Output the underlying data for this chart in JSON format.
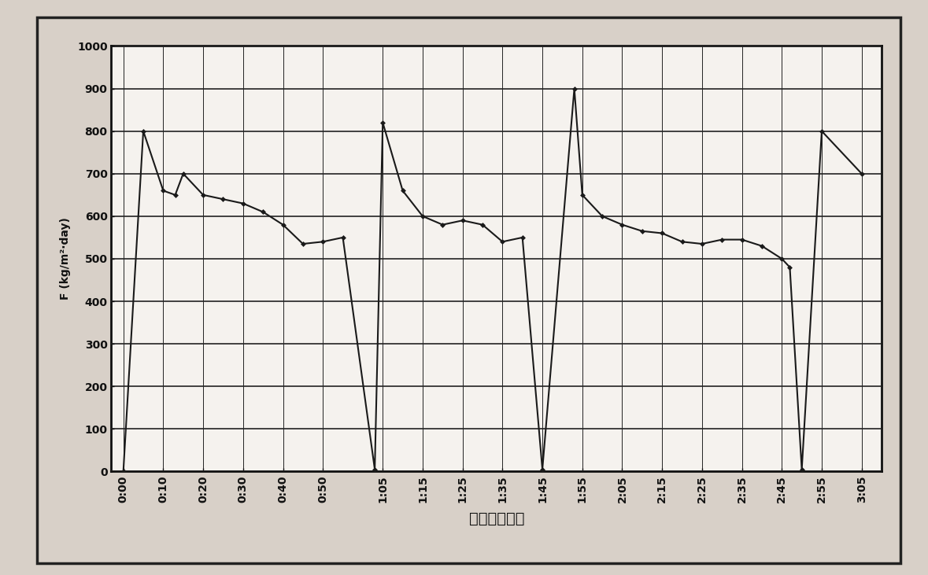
{
  "x_labels": [
    "0:00",
    "0:10",
    "0:20",
    "0:30",
    "0:40",
    "0:50",
    "1:05",
    "1:15",
    "1:25",
    "1:35",
    "1:45",
    "1:55",
    "2:05",
    "2:15",
    "2:25",
    "2:35",
    "2:45",
    "2:55",
    "3:05"
  ],
  "x_tick_mins": [
    0,
    10,
    20,
    30,
    40,
    50,
    65,
    75,
    85,
    95,
    105,
    115,
    125,
    135,
    145,
    155,
    165,
    175,
    185
  ],
  "x_data": [
    0,
    5,
    10,
    13,
    15,
    20,
    25,
    30,
    35,
    40,
    45,
    50,
    55,
    63,
    65,
    70,
    75,
    80,
    85,
    90,
    95,
    100,
    105,
    113,
    115,
    120,
    125,
    130,
    135,
    140,
    145,
    150,
    155,
    160,
    165,
    167,
    170,
    175,
    185
  ],
  "y_data": [
    0,
    800,
    660,
    650,
    700,
    650,
    640,
    630,
    610,
    580,
    535,
    540,
    550,
    5,
    820,
    660,
    600,
    580,
    590,
    580,
    540,
    550,
    5,
    900,
    650,
    600,
    580,
    565,
    560,
    540,
    535,
    545,
    545,
    530,
    500,
    480,
    5,
    800,
    700
  ],
  "xlabel": "时间（小时）",
  "ylabel": "F（kg/m²·day）",
  "ylim": [
    0,
    1000
  ],
  "xlim": [
    -3,
    190
  ],
  "yticks": [
    0,
    100,
    200,
    300,
    400,
    500,
    600,
    700,
    800,
    900,
    1000
  ],
  "line_color": "#1a1a1a",
  "outer_bg": "#d8d0c8",
  "chart_bg": "#f5f2ee",
  "grid_color": "#222222",
  "border_color": "#111111",
  "tick_fontsize": 10,
  "label_fontsize": 14,
  "ylabel_text": "F (kg/m2.day)"
}
